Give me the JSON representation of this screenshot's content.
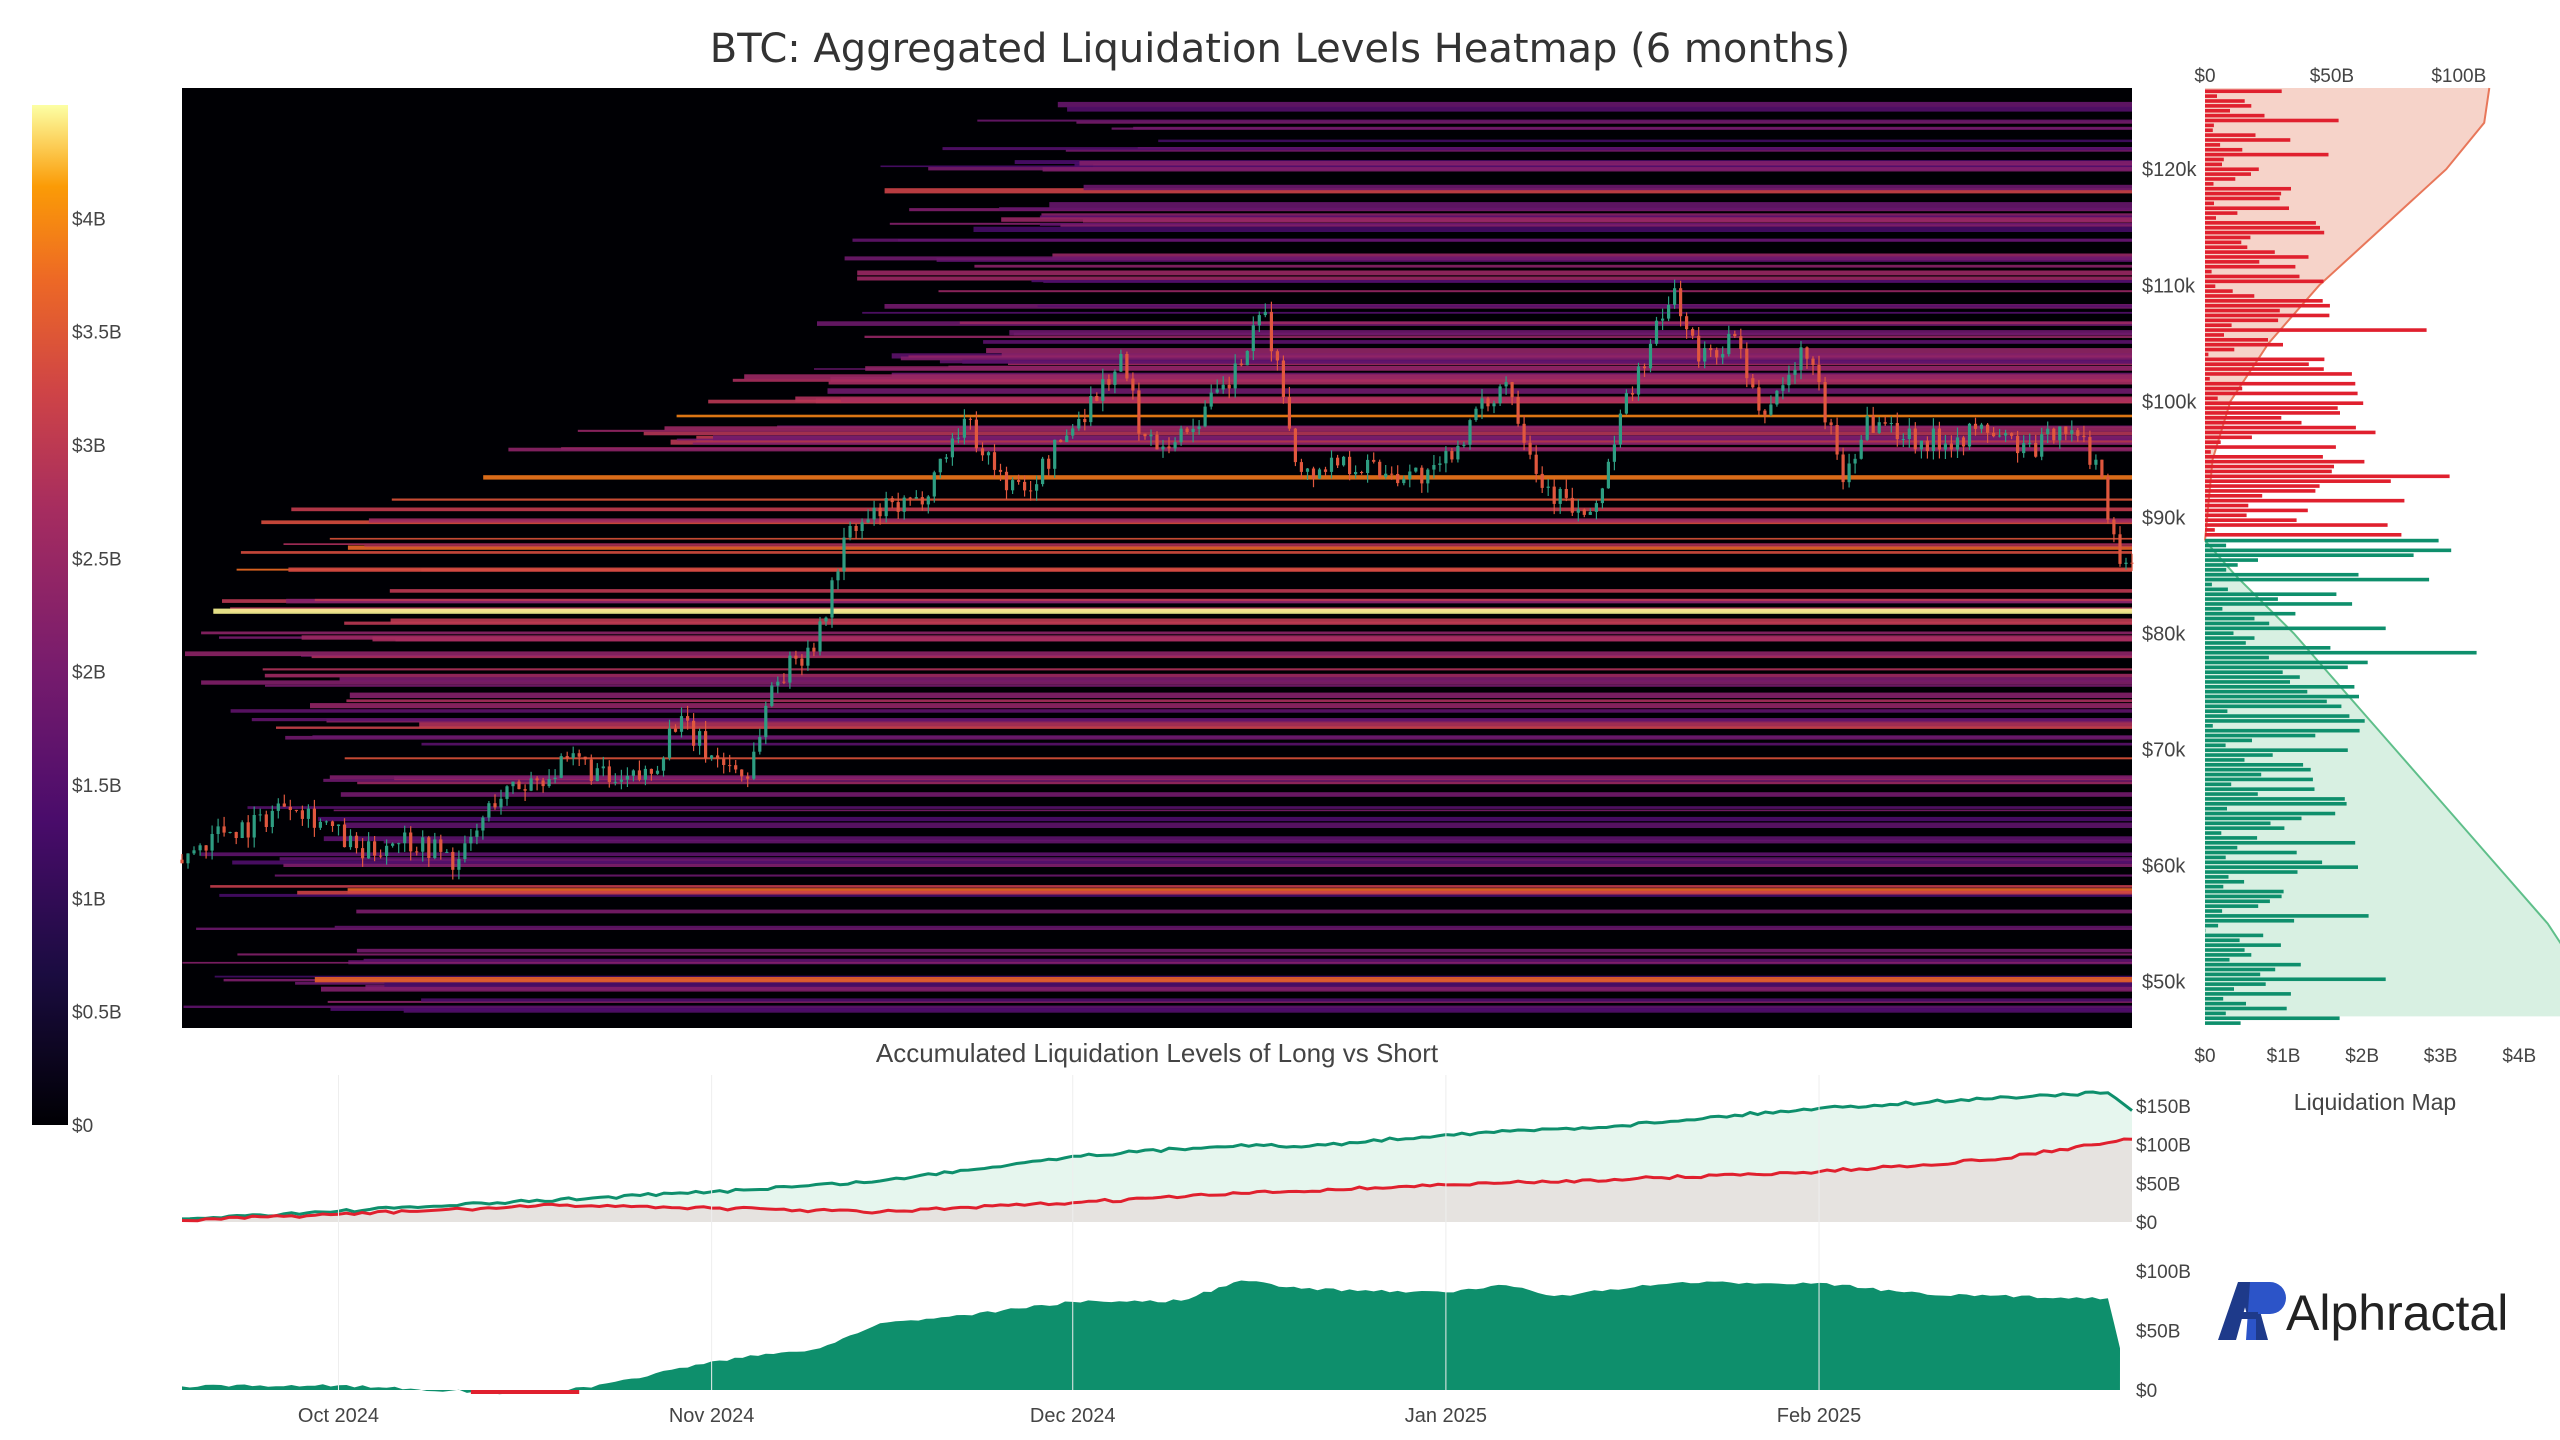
{
  "title": "BTC: Aggregated Liquidation Levels Heatmap (6 months)",
  "subtitle": "Accumulated Liquidation Levels of Long vs Short",
  "side_panel_title": "Liquidation Map",
  "logo_text": "Alphractal",
  "colors": {
    "short_red": "#e0202e",
    "long_green": "#0e8f6c",
    "short_fill": "#f6d3c9",
    "long_fill": "#d8f0e2",
    "candle_up": "#2e9d82",
    "candle_down": "#e0573e"
  },
  "chart_data": [
    {
      "type": "heatmap",
      "id": "main",
      "title": "BTC: Aggregated Liquidation Levels Heatmap (6 months)",
      "y_ticks": [
        "$50k",
        "$60k",
        "$70k",
        "$80k",
        "$90k",
        "$100k",
        "$110k",
        "$120k"
      ],
      "y_tick_values": [
        50000,
        60000,
        70000,
        80000,
        90000,
        100000,
        110000,
        120000
      ],
      "ylim": [
        46000,
        127000
      ],
      "x_ticks": [
        "Oct 2024",
        "Nov 2024",
        "Dec 2024",
        "Jan 2025",
        "Feb 2025"
      ],
      "x_tick_dates": [
        "2024-10-01",
        "2024-11-01",
        "2024-12-01",
        "2025-01-01",
        "2025-02-01"
      ],
      "xlim": [
        "2024-09-18",
        "2025-02-27"
      ],
      "colorbar": {
        "ticks": [
          "$0",
          "$0.5B",
          "$1B",
          "$1.5B",
          "$2B",
          "$2.5B",
          "$3B",
          "$3.5B",
          "$4B"
        ],
        "range_billions": [
          0,
          4.5
        ]
      },
      "price_path": [
        [
          "2024-09-18",
          60500
        ],
        [
          "2024-09-21",
          63000
        ],
        [
          "2024-09-24",
          63500
        ],
        [
          "2024-09-27",
          65800
        ],
        [
          "2024-09-30",
          63500
        ],
        [
          "2024-10-03",
          60800
        ],
        [
          "2024-10-06",
          62500
        ],
        [
          "2024-10-09",
          61500
        ],
        [
          "2024-10-11",
          60200
        ],
        [
          "2024-10-14",
          65800
        ],
        [
          "2024-10-17",
          67300
        ],
        [
          "2024-10-21",
          69000
        ],
        [
          "2024-10-24",
          66800
        ],
        [
          "2024-10-27",
          68000
        ],
        [
          "2024-10-29",
          72500
        ],
        [
          "2024-11-01",
          69500
        ],
        [
          "2024-11-04",
          67800
        ],
        [
          "2024-11-06",
          75500
        ],
        [
          "2024-11-10",
          80000
        ],
        [
          "2024-11-12",
          88000
        ],
        [
          "2024-11-15",
          90500
        ],
        [
          "2024-11-18",
          91000
        ],
        [
          "2024-11-22",
          98500
        ],
        [
          "2024-11-25",
          93500
        ],
        [
          "2024-11-27",
          92000
        ],
        [
          "2024-11-30",
          96500
        ],
        [
          "2024-12-05",
          103500
        ],
        [
          "2024-12-07",
          96500
        ],
        [
          "2024-12-10",
          97000
        ],
        [
          "2024-12-14",
          101500
        ],
        [
          "2024-12-17",
          107500
        ],
        [
          "2024-12-20",
          93500
        ],
        [
          "2024-12-23",
          95000
        ],
        [
          "2024-12-27",
          94000
        ],
        [
          "2024-12-31",
          93500
        ],
        [
          "2025-01-02",
          96500
        ],
        [
          "2025-01-06",
          102000
        ],
        [
          "2025-01-09",
          93000
        ],
        [
          "2025-01-13",
          89500
        ],
        [
          "2025-01-16",
          100000
        ],
        [
          "2025-01-20",
          109500
        ],
        [
          "2025-01-22",
          103500
        ],
        [
          "2025-01-25",
          105500
        ],
        [
          "2025-01-27",
          98500
        ],
        [
          "2025-01-31",
          104500
        ],
        [
          "2025-02-03",
          93500
        ],
        [
          "2025-02-05",
          98500
        ],
        [
          "2025-02-10",
          96500
        ],
        [
          "2025-02-15",
          97500
        ],
        [
          "2025-02-19",
          95500
        ],
        [
          "2025-02-21",
          98300
        ],
        [
          "2025-02-24",
          95000
        ],
        [
          "2025-02-26",
          86500
        ]
      ]
    },
    {
      "type": "bar",
      "id": "liquidation-map",
      "title": "Liquidation Map",
      "orientation": "horizontal",
      "x_ticks_bottom": [
        "$0",
        "$1B",
        "$2B",
        "$3B",
        "$4B"
      ],
      "x_ticks_top": [
        "$0",
        "$50B",
        "$100B"
      ],
      "short_cumulative_billions_by_price": [
        [
          88000,
          0
        ],
        [
          95000,
          3
        ],
        [
          100000,
          10
        ],
        [
          105000,
          25
        ],
        [
          110000,
          45
        ],
        [
          115000,
          70
        ],
        [
          120000,
          95
        ],
        [
          124000,
          110
        ],
        [
          127000,
          112
        ]
      ],
      "long_cumulative_billions_by_price": [
        [
          88000,
          0
        ],
        [
          85000,
          12
        ],
        [
          80000,
          35
        ],
        [
          75000,
          55
        ],
        [
          70000,
          75
        ],
        [
          65000,
          95
        ],
        [
          60000,
          115
        ],
        [
          55000,
          135
        ],
        [
          50000,
          150
        ],
        [
          47000,
          158
        ]
      ],
      "peak_values_billions": {
        "short_max": 3.7,
        "long_max": 4.1
      }
    },
    {
      "type": "area",
      "id": "accumulated-long-short",
      "title": "Accumulated Liquidation Levels of Long vs Short",
      "y_ticks": [
        "$0",
        "$50B",
        "$100B",
        "$150B"
      ],
      "ylim": [
        0,
        190
      ],
      "series": [
        {
          "name": "",
          "color": "#0e8f6c",
          "points": [
            [
              "2024-09-18",
              4
            ],
            [
              "2024-10-01",
              14
            ],
            [
              "2024-11-01",
              39
            ],
            [
              "2024-11-15",
              53
            ],
            [
              "2024-12-01",
              85
            ],
            [
              "2024-12-15",
              100
            ],
            [
              "2024-12-20",
              97
            ],
            [
              "2025-01-01",
              113
            ],
            [
              "2025-01-15",
              124
            ],
            [
              "2025-01-25",
              138
            ],
            [
              "2025-02-01",
              147
            ],
            [
              "2025-02-20",
              164
            ],
            [
              "2025-02-25",
              167
            ],
            [
              "2025-02-27",
              144
            ]
          ]
        },
        {
          "name": "",
          "color": "#e0202e",
          "points": [
            [
              "2024-09-18",
              2
            ],
            [
              "2024-10-01",
              10
            ],
            [
              "2024-10-20",
              22
            ],
            [
              "2024-11-01",
              18
            ],
            [
              "2024-11-15",
              13
            ],
            [
              "2024-12-01",
              25
            ],
            [
              "2024-12-15",
              37
            ],
            [
              "2025-01-01",
              48
            ],
            [
              "2025-01-15",
              55
            ],
            [
              "2025-02-01",
              65
            ],
            [
              "2025-02-15",
              80
            ],
            [
              "2025-02-27",
              107
            ]
          ]
        }
      ]
    },
    {
      "type": "area",
      "id": "net-difference",
      "y_ticks": [
        "$0",
        "$50B",
        "$100B"
      ],
      "ylim": [
        -5,
        105
      ],
      "points": [
        [
          "2024-09-18",
          3
        ],
        [
          "2024-10-01",
          4
        ],
        [
          "2024-10-15",
          -3
        ],
        [
          "2024-10-22",
          2
        ],
        [
          "2024-11-01",
          24
        ],
        [
          "2024-11-10",
          35
        ],
        [
          "2024-11-15",
          56
        ],
        [
          "2024-11-22",
          63
        ],
        [
          "2024-12-01",
          74
        ],
        [
          "2024-12-10",
          75
        ],
        [
          "2024-12-15",
          92
        ],
        [
          "2024-12-20",
          85
        ],
        [
          "2025-01-01",
          82
        ],
        [
          "2025-01-06",
          88
        ],
        [
          "2025-01-10",
          79
        ],
        [
          "2025-01-20",
          90
        ],
        [
          "2025-02-01",
          90
        ],
        [
          "2025-02-10",
          80
        ],
        [
          "2025-02-25",
          77
        ],
        [
          "2025-02-26",
          35
        ]
      ]
    }
  ]
}
